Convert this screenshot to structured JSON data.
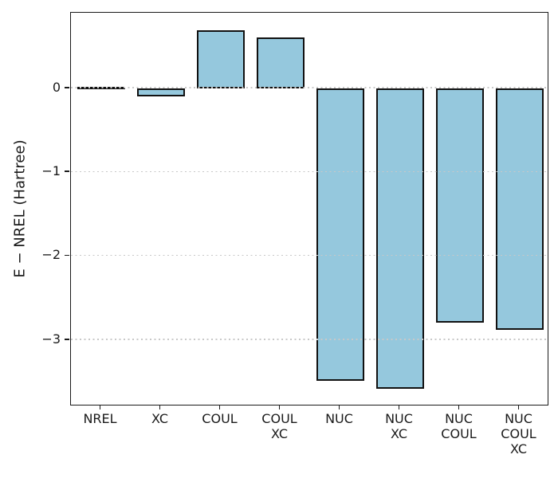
{
  "chart_data": {
    "type": "bar",
    "categories": [
      "NREL",
      "XC",
      "COUL",
      "COUL\nXC",
      "NUC",
      "NUC\nXC",
      "NUC\nCOUL",
      "NUC\nCOUL\nXC"
    ],
    "values": [
      0.0,
      -0.1,
      0.69,
      0.61,
      -3.49,
      -3.58,
      -2.79,
      -2.88
    ],
    "title": "",
    "xlabel": "",
    "ylabel": "E − NREL (Hartree)",
    "ylim": [
      -3.79,
      0.9
    ],
    "yticks": [
      0,
      -1,
      -2,
      -3
    ],
    "ytick_labels": [
      "0",
      "−1",
      "−2",
      "−3"
    ],
    "grid": "horizontal-dotted",
    "legend": "none",
    "colors": {
      "bar_fill": "#95c8dd",
      "bar_edge": "#111111",
      "grid_line": "#c8c8c8",
      "axis_spine": "#1a1a1a",
      "text": "#1a1a1a",
      "background": "#ffffff"
    }
  }
}
